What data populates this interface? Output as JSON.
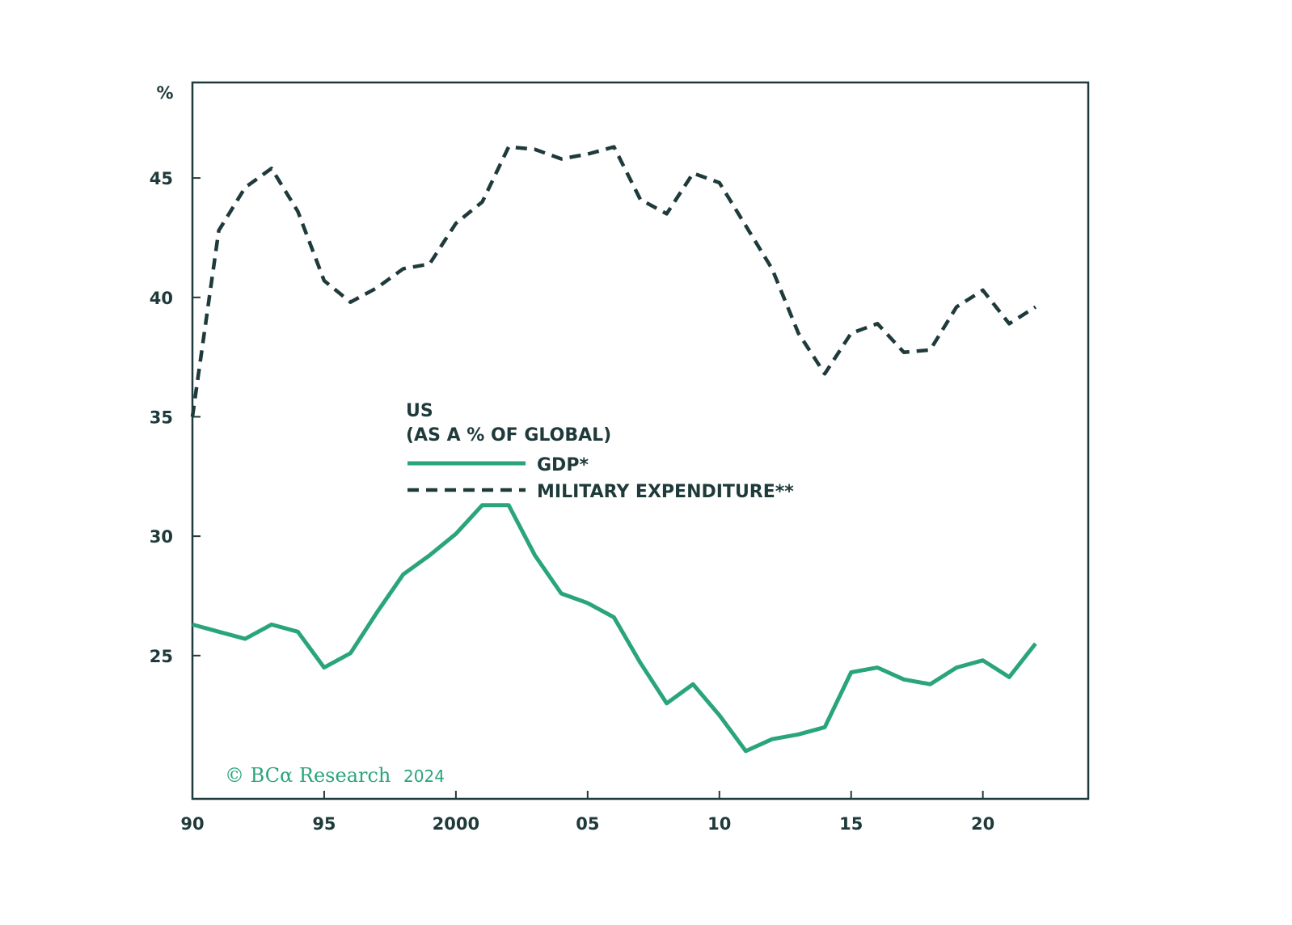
{
  "chart_data": {
    "type": "line",
    "title": "US (AS A % OF GLOBAL)",
    "title_lines": [
      "US",
      "(AS A % OF GLOBAL)"
    ],
    "ylabel": "%",
    "xlabel": "",
    "xlim": [
      1990,
      2024
    ],
    "ylim": [
      19,
      49
    ],
    "yticks": [
      25,
      30,
      35,
      40,
      45
    ],
    "ytick_labels": [
      "25",
      "30",
      "35",
      "40",
      "45"
    ],
    "xticks": [
      1990,
      1995,
      2000,
      2005,
      2010,
      2015,
      2020
    ],
    "xtick_labels": [
      "90",
      "95",
      "2000",
      "05",
      "10",
      "15",
      "20"
    ],
    "grid": false,
    "legend_position": "center-left",
    "series": [
      {
        "name": "GDP*",
        "style": "solid",
        "color": "#2aa57b",
        "x": [
          1990,
          1991,
          1992,
          1993,
          1994,
          1995,
          1996,
          1997,
          1998,
          1999,
          2000,
          2001,
          2002,
          2003,
          2004,
          2005,
          2006,
          2007,
          2008,
          2009,
          2010,
          2011,
          2012,
          2013,
          2014,
          2015,
          2016,
          2017,
          2018,
          2019,
          2020,
          2021,
          2022
        ],
        "values": [
          26.3,
          26.0,
          25.7,
          26.3,
          26.0,
          24.5,
          25.1,
          26.8,
          28.4,
          29.2,
          30.1,
          31.3,
          31.3,
          29.2,
          27.6,
          27.2,
          26.6,
          24.7,
          23.0,
          23.8,
          22.5,
          21.0,
          21.5,
          21.7,
          22.0,
          24.3,
          24.5,
          24.0,
          23.8,
          24.5,
          24.8,
          24.1,
          25.5
        ]
      },
      {
        "name": "MILITARY EXPENDITURE**",
        "style": "dashed",
        "color": "#1f3a3a",
        "x": [
          1990,
          1991,
          1992,
          1993,
          1994,
          1995,
          1996,
          1997,
          1998,
          1999,
          2000,
          2001,
          2002,
          2003,
          2004,
          2005,
          2006,
          2007,
          2008,
          2009,
          2010,
          2011,
          2012,
          2013,
          2014,
          2015,
          2016,
          2017,
          2018,
          2019,
          2020,
          2021,
          2022
        ],
        "values": [
          35.0,
          42.8,
          44.6,
          45.4,
          43.6,
          40.7,
          39.8,
          40.4,
          41.2,
          41.4,
          43.1,
          44.0,
          46.3,
          46.2,
          45.8,
          46.0,
          46.3,
          44.1,
          43.5,
          45.2,
          44.8,
          43.0,
          41.2,
          38.5,
          36.8,
          38.5,
          38.9,
          37.7,
          37.8,
          39.6,
          40.3,
          38.9,
          39.6
        ]
      }
    ]
  },
  "legend": {
    "title_line1": "US",
    "title_line2": "(AS A % OF GLOBAL)",
    "gdp_label": "GDP*",
    "military_label": "MILITARY EXPENDITURE**"
  },
  "credit": {
    "text": "© BCα Research",
    "year": "2024"
  },
  "colors": {
    "gdp": "#2aa57b",
    "military": "#1f3a3a",
    "axis": "#1f3a3a"
  }
}
